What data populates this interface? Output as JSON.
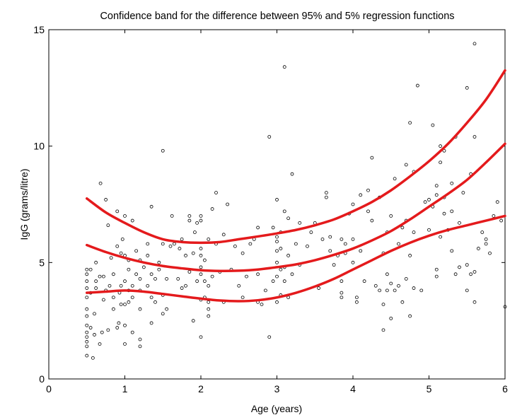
{
  "chart_data": {
    "type": "scatter",
    "title": "Confidence band for the difference between 95% and 5% regression functions",
    "xlabel": "Age (years)",
    "ylabel": "IgG (grams/litre)",
    "xlim": [
      0,
      6
    ],
    "ylim": [
      0,
      15
    ],
    "x_ticks": [
      "0",
      "1",
      "2",
      "3",
      "4",
      "5",
      "6"
    ],
    "y_ticks": [
      "0",
      "5",
      "10",
      "15"
    ],
    "grid": false,
    "legend": "none",
    "colors": {
      "curves": "#e41a1c",
      "points": "#000000",
      "axes": "#000000"
    },
    "series": [
      {
        "kind": "points",
        "points": [
          [
            0.5,
            1.0
          ],
          [
            0.5,
            1.4
          ],
          [
            0.5,
            1.6
          ],
          [
            0.5,
            1.8
          ],
          [
            0.5,
            2.0
          ],
          [
            0.5,
            2.3
          ],
          [
            0.5,
            2.7
          ],
          [
            0.5,
            3.0
          ],
          [
            0.5,
            3.5
          ],
          [
            0.5,
            3.9
          ],
          [
            0.5,
            4.2
          ],
          [
            0.5,
            4.5
          ],
          [
            0.5,
            4.7
          ],
          [
            0.55,
            2.2
          ],
          [
            0.55,
            3.7
          ],
          [
            0.55,
            4.7
          ],
          [
            0.58,
            0.9
          ],
          [
            0.6,
            1.9
          ],
          [
            0.6,
            2.8
          ],
          [
            0.62,
            3.9
          ],
          [
            0.62,
            4.2
          ],
          [
            0.62,
            5.0
          ],
          [
            0.67,
            1.5
          ],
          [
            0.67,
            4.4
          ],
          [
            0.68,
            8.4
          ],
          [
            0.7,
            2.0
          ],
          [
            0.72,
            3.4
          ],
          [
            0.72,
            4.4
          ],
          [
            0.75,
            3.8
          ],
          [
            0.75,
            7.7
          ],
          [
            0.78,
            2.1
          ],
          [
            0.78,
            6.6
          ],
          [
            0.8,
            4.0
          ],
          [
            0.82,
            5.2
          ],
          [
            0.85,
            3.0
          ],
          [
            0.85,
            3.5
          ],
          [
            0.85,
            4.5
          ],
          [
            0.9,
            2.2
          ],
          [
            0.9,
            5.7
          ],
          [
            0.9,
            7.2
          ],
          [
            0.92,
            2.4
          ],
          [
            0.93,
            3.7
          ],
          [
            0.95,
            3.2
          ],
          [
            0.95,
            4.0
          ],
          [
            0.95,
            5.4
          ],
          [
            0.97,
            6.0
          ],
          [
            1.0,
            1.5
          ],
          [
            1.0,
            2.3
          ],
          [
            1.0,
            3.2
          ],
          [
            1.0,
            4.2
          ],
          [
            1.0,
            5.3
          ],
          [
            1.0,
            7.0
          ],
          [
            1.05,
            3.3
          ],
          [
            1.05,
            3.8
          ],
          [
            1.05,
            4.7
          ],
          [
            1.05,
            5.1
          ],
          [
            1.1,
            2.0
          ],
          [
            1.1,
            3.5
          ],
          [
            1.1,
            4.0
          ],
          [
            1.1,
            6.8
          ],
          [
            1.15,
            4.5
          ],
          [
            1.15,
            5.5
          ],
          [
            1.2,
            1.4
          ],
          [
            1.2,
            1.7
          ],
          [
            1.2,
            3.0
          ],
          [
            1.2,
            3.8
          ],
          [
            1.2,
            4.3
          ],
          [
            1.2,
            5.1
          ],
          [
            1.25,
            4.8
          ],
          [
            1.3,
            4.0
          ],
          [
            1.3,
            5.3
          ],
          [
            1.3,
            5.8
          ],
          [
            1.35,
            2.4
          ],
          [
            1.35,
            3.5
          ],
          [
            1.35,
            4.5
          ],
          [
            1.35,
            7.4
          ],
          [
            1.4,
            3.3
          ],
          [
            1.4,
            4.3
          ],
          [
            1.45,
            4.7
          ],
          [
            1.45,
            5.0
          ],
          [
            1.5,
            2.8
          ],
          [
            1.5,
            3.6
          ],
          [
            1.5,
            5.8
          ],
          [
            1.5,
            9.8
          ],
          [
            1.55,
            3.0
          ],
          [
            1.55,
            4.3
          ],
          [
            1.6,
            5.7
          ],
          [
            1.62,
            7.0
          ],
          [
            1.65,
            5.8
          ],
          [
            1.7,
            4.3
          ],
          [
            1.72,
            5.6
          ],
          [
            1.75,
            3.9
          ],
          [
            1.75,
            6.0
          ],
          [
            1.8,
            4.0
          ],
          [
            1.8,
            5.3
          ],
          [
            1.85,
            4.6
          ],
          [
            1.85,
            6.8
          ],
          [
            1.85,
            7.0
          ],
          [
            1.9,
            2.5
          ],
          [
            1.9,
            5.4
          ],
          [
            1.92,
            6.3
          ],
          [
            1.95,
            4.2
          ],
          [
            1.95,
            6.7
          ],
          [
            2.0,
            1.8
          ],
          [
            2.0,
            3.4
          ],
          [
            2.0,
            4.5
          ],
          [
            2.0,
            4.8
          ],
          [
            2.0,
            5.3
          ],
          [
            2.0,
            5.6
          ],
          [
            2.0,
            6.8
          ],
          [
            2.0,
            7.0
          ],
          [
            2.05,
            3.5
          ],
          [
            2.05,
            4.2
          ],
          [
            2.05,
            5.1
          ],
          [
            2.1,
            2.7
          ],
          [
            2.1,
            3.0
          ],
          [
            2.1,
            3.3
          ],
          [
            2.1,
            4.0
          ],
          [
            2.1,
            6.0
          ],
          [
            2.15,
            4.4
          ],
          [
            2.15,
            7.3
          ],
          [
            2.2,
            5.8
          ],
          [
            2.2,
            8.0
          ],
          [
            2.25,
            4.6
          ],
          [
            2.3,
            3.3
          ],
          [
            2.3,
            6.2
          ],
          [
            2.35,
            7.5
          ],
          [
            2.4,
            4.7
          ],
          [
            2.45,
            5.7
          ],
          [
            2.5,
            4.0
          ],
          [
            2.55,
            3.5
          ],
          [
            2.55,
            5.4
          ],
          [
            2.6,
            4.4
          ],
          [
            2.65,
            5.8
          ],
          [
            2.7,
            6.0
          ],
          [
            2.75,
            3.3
          ],
          [
            2.75,
            4.5
          ],
          [
            2.75,
            6.5
          ],
          [
            2.8,
            3.2
          ],
          [
            2.85,
            3.8
          ],
          [
            2.9,
            1.8
          ],
          [
            2.9,
            10.4
          ],
          [
            2.95,
            4.2
          ],
          [
            2.95,
            6.5
          ],
          [
            3.0,
            3.3
          ],
          [
            3.0,
            4.4
          ],
          [
            3.0,
            5.0
          ],
          [
            3.0,
            5.5
          ],
          [
            3.0,
            5.9
          ],
          [
            3.0,
            6.1
          ],
          [
            3.0,
            7.7
          ],
          [
            3.05,
            3.6
          ],
          [
            3.05,
            4.7
          ],
          [
            3.05,
            5.6
          ],
          [
            3.05,
            6.3
          ],
          [
            3.1,
            13.4
          ],
          [
            3.1,
            4.2
          ],
          [
            3.1,
            4.8
          ],
          [
            3.1,
            7.2
          ],
          [
            3.15,
            3.5
          ],
          [
            3.15,
            5.3
          ],
          [
            3.15,
            6.9
          ],
          [
            3.2,
            4.5
          ],
          [
            3.2,
            8.8
          ],
          [
            3.25,
            5.8
          ],
          [
            3.3,
            4.9
          ],
          [
            3.3,
            6.7
          ],
          [
            3.4,
            5.7
          ],
          [
            3.45,
            6.3
          ],
          [
            3.5,
            6.7
          ],
          [
            3.55,
            3.9
          ],
          [
            3.6,
            6.0
          ],
          [
            3.65,
            7.8
          ],
          [
            3.65,
            8.0
          ],
          [
            3.7,
            5.5
          ],
          [
            3.7,
            6.1
          ],
          [
            3.75,
            4.9
          ],
          [
            3.8,
            5.3
          ],
          [
            3.85,
            3.5
          ],
          [
            3.85,
            3.7
          ],
          [
            3.85,
            4.2
          ],
          [
            3.85,
            6.0
          ],
          [
            3.9,
            5.4
          ],
          [
            3.9,
            5.8
          ],
          [
            3.95,
            7.1
          ],
          [
            4.0,
            5.0
          ],
          [
            4.0,
            6.0
          ],
          [
            4.0,
            7.5
          ],
          [
            4.05,
            3.3
          ],
          [
            4.05,
            3.5
          ],
          [
            4.1,
            5.5
          ],
          [
            4.1,
            7.9
          ],
          [
            4.15,
            4.2
          ],
          [
            4.2,
            7.2
          ],
          [
            4.2,
            8.1
          ],
          [
            4.25,
            6.8
          ],
          [
            4.25,
            9.5
          ],
          [
            4.3,
            4.0
          ],
          [
            4.35,
            3.8
          ],
          [
            4.35,
            7.8
          ],
          [
            4.4,
            2.1
          ],
          [
            4.4,
            3.2
          ],
          [
            4.4,
            5.4
          ],
          [
            4.45,
            3.8
          ],
          [
            4.45,
            4.5
          ],
          [
            4.45,
            6.3
          ],
          [
            4.5,
            2.6
          ],
          [
            4.5,
            4.1
          ],
          [
            4.5,
            7.0
          ],
          [
            4.55,
            3.8
          ],
          [
            4.55,
            8.6
          ],
          [
            4.6,
            4.0
          ],
          [
            4.6,
            5.8
          ],
          [
            4.65,
            3.3
          ],
          [
            4.65,
            6.5
          ],
          [
            4.7,
            4.3
          ],
          [
            4.7,
            6.8
          ],
          [
            4.7,
            9.2
          ],
          [
            4.75,
            2.7
          ],
          [
            4.75,
            5.3
          ],
          [
            4.75,
            11.0
          ],
          [
            4.8,
            3.9
          ],
          [
            4.8,
            6.3
          ],
          [
            4.8,
            8.9
          ],
          [
            4.85,
            12.6
          ],
          [
            4.9,
            3.8
          ],
          [
            4.95,
            7.6
          ],
          [
            5.0,
            6.4
          ],
          [
            5.0,
            7.7
          ],
          [
            5.05,
            7.4
          ],
          [
            5.05,
            10.9
          ],
          [
            5.1,
            4.4
          ],
          [
            5.1,
            4.7
          ],
          [
            5.1,
            7.9
          ],
          [
            5.1,
            8.3
          ],
          [
            5.15,
            6.1
          ],
          [
            5.15,
            9.3
          ],
          [
            5.15,
            10.0
          ],
          [
            5.2,
            7.1
          ],
          [
            5.2,
            7.8
          ],
          [
            5.2,
            9.8
          ],
          [
            5.25,
            6.4
          ],
          [
            5.3,
            5.5
          ],
          [
            5.3,
            7.2
          ],
          [
            5.3,
            8.4
          ],
          [
            5.35,
            4.5
          ],
          [
            5.35,
            10.4
          ],
          [
            5.4,
            4.8
          ],
          [
            5.4,
            6.7
          ],
          [
            5.45,
            8.0
          ],
          [
            5.5,
            3.8
          ],
          [
            5.5,
            4.9
          ],
          [
            5.5,
            12.5
          ],
          [
            5.55,
            4.5
          ],
          [
            5.55,
            8.8
          ],
          [
            5.6,
            3.3
          ],
          [
            5.6,
            4.6
          ],
          [
            5.6,
            10.4
          ],
          [
            5.6,
            14.4
          ],
          [
            5.65,
            5.6
          ],
          [
            5.7,
            6.3
          ],
          [
            5.75,
            5.8
          ],
          [
            5.75,
            6.0
          ],
          [
            5.8,
            5.4
          ],
          [
            5.85,
            7.0
          ],
          [
            5.9,
            7.6
          ],
          [
            5.95,
            6.8
          ],
          [
            6.0,
            3.1
          ]
        ]
      },
      {
        "kind": "curve",
        "name": "",
        "x": [
          0.5,
          0.75,
          1.0,
          1.25,
          1.5,
          1.75,
          2.0,
          2.25,
          2.5,
          2.75,
          3.0,
          3.25,
          3.5,
          3.75,
          4.0,
          4.25,
          4.5,
          4.75,
          5.0,
          5.25,
          5.5,
          5.75,
          6.0
        ],
        "y": [
          7.75,
          7.15,
          6.7,
          6.3,
          6.0,
          5.88,
          5.85,
          5.88,
          6.0,
          6.12,
          6.25,
          6.4,
          6.6,
          6.85,
          7.2,
          7.6,
          8.1,
          8.7,
          9.35,
          10.1,
          11.0,
          12.0,
          13.25
        ]
      },
      {
        "kind": "curve",
        "name": "",
        "x": [
          0.5,
          0.75,
          1.0,
          1.25,
          1.5,
          1.75,
          2.0,
          2.25,
          2.5,
          2.75,
          3.0,
          3.25,
          3.5,
          3.75,
          4.0,
          4.25,
          4.5,
          4.75,
          5.0,
          5.25,
          5.5,
          5.75,
          6.0
        ],
        "y": [
          5.75,
          5.45,
          5.2,
          5.0,
          4.85,
          4.75,
          4.67,
          4.64,
          4.65,
          4.7,
          4.8,
          4.92,
          5.1,
          5.33,
          5.6,
          5.95,
          6.35,
          6.85,
          7.4,
          7.95,
          8.55,
          9.3,
          10.1
        ]
      },
      {
        "kind": "curve",
        "name": "",
        "x": [
          0.5,
          0.75,
          1.0,
          1.25,
          1.5,
          1.75,
          2.0,
          2.25,
          2.5,
          2.75,
          3.0,
          3.25,
          3.5,
          3.75,
          4.0,
          4.25,
          4.5,
          4.75,
          5.0,
          5.25,
          5.5,
          5.75,
          6.0
        ],
        "y": [
          3.7,
          3.75,
          3.8,
          3.75,
          3.65,
          3.55,
          3.45,
          3.37,
          3.34,
          3.38,
          3.5,
          3.7,
          3.97,
          4.3,
          4.7,
          5.1,
          5.5,
          5.85,
          6.15,
          6.4,
          6.6,
          6.8,
          7.0
        ]
      }
    ]
  }
}
